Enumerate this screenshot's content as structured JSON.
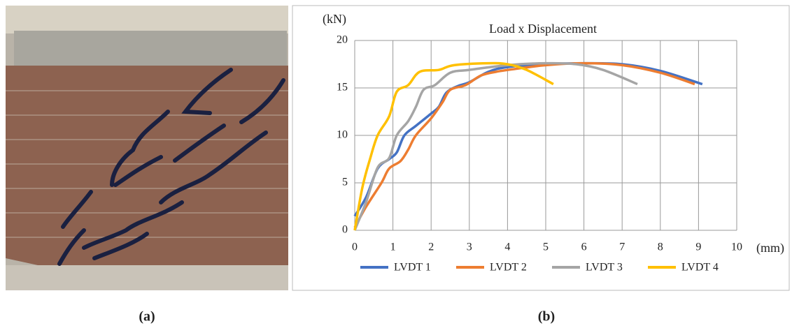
{
  "panel_labels": {
    "a": "(a)",
    "b": "(b)"
  },
  "chart_data": {
    "type": "line",
    "title": "Load x Displacement",
    "y_label": "(kN)",
    "x_label": "(mm)",
    "xlim": [
      0,
      10
    ],
    "xticks": [
      0,
      1,
      2,
      3,
      4,
      5,
      6,
      7,
      8,
      9,
      10
    ],
    "ylim": [
      0,
      20
    ],
    "yticks": [
      0,
      5,
      10,
      15,
      20
    ],
    "grid": true,
    "legend": "bottom",
    "series": [
      {
        "name": "LVDT 1",
        "color": "#4472c4",
        "x": [
          0,
          0.3,
          0.6,
          0.9,
          1.1,
          1.3,
          1.6,
          2,
          2.2,
          2.4,
          2.7,
          3,
          3.5,
          4,
          5,
          6,
          7,
          8,
          9.1
        ],
        "values": [
          1.5,
          3.5,
          6.5,
          7.5,
          8.2,
          10,
          11,
          12.3,
          13,
          14.5,
          15.2,
          15.6,
          16.7,
          17.2,
          17.5,
          17.6,
          17.5,
          16.8,
          15.4
        ]
      },
      {
        "name": "LVDT 2",
        "color": "#ed7d31",
        "x": [
          0,
          0.3,
          0.7,
          0.9,
          1.2,
          1.4,
          1.6,
          2,
          2.3,
          2.5,
          2.9,
          3.3,
          3.7,
          4.2,
          5,
          6,
          7,
          8,
          8.9
        ],
        "values": [
          0.3,
          2.5,
          5,
          6.5,
          7.3,
          8.5,
          10,
          11.8,
          13.5,
          14.8,
          15.3,
          16.3,
          16.7,
          17,
          17.4,
          17.6,
          17.4,
          16.6,
          15.4
        ]
      },
      {
        "name": "LVDT 3",
        "color": "#a5a5a5",
        "x": [
          0,
          0.3,
          0.6,
          0.9,
          1.1,
          1.4,
          1.6,
          1.8,
          2.1,
          2.5,
          3,
          4,
          5,
          5.8,
          6.5,
          7.4
        ],
        "values": [
          0,
          3,
          6.6,
          7.6,
          10,
          11.5,
          13,
          14.8,
          15.3,
          16.6,
          16.9,
          17.4,
          17.6,
          17.5,
          16.9,
          15.4
        ]
      },
      {
        "name": "LVDT 4",
        "color": "#ffc000",
        "x": [
          0,
          0.2,
          0.4,
          0.6,
          0.9,
          1.1,
          1.4,
          1.7,
          2.2,
          2.6,
          3.5,
          4,
          4.5,
          5.2
        ],
        "values": [
          0,
          4.5,
          7.5,
          10,
          12,
          14.6,
          15.3,
          16.7,
          16.9,
          17.4,
          17.6,
          17.5,
          16.9,
          15.4
        ]
      }
    ]
  }
}
